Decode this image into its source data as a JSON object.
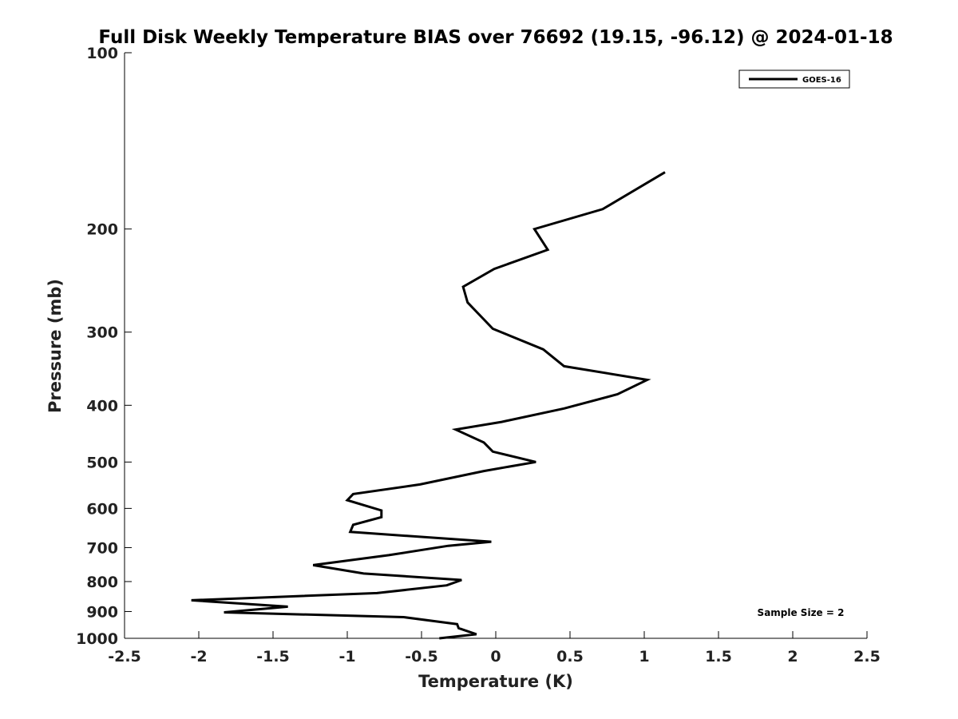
{
  "chart_data": {
    "type": "line",
    "title": "Full Disk Weekly Temperature BIAS over 76692 (19.15, -96.12) @ 2024-01-18",
    "xlabel": "Temperature (K)",
    "ylabel": "Pressure (mb)",
    "xlim": [
      -2.5,
      2.5
    ],
    "ylim": [
      1000,
      100
    ],
    "yscale": "log",
    "xticks": [
      "-2.5",
      "-2",
      "-1.5",
      "-1",
      "-0.5",
      "0",
      "0.5",
      "1",
      "1.5",
      "2",
      "2.5"
    ],
    "yticks": [
      "100",
      "200",
      "300",
      "400",
      "500",
      "600",
      "700",
      "800",
      "900",
      "1000"
    ],
    "grid": false,
    "legend_position": "top-right",
    "series": [
      {
        "name": "GOES-16",
        "color": "#000000",
        "points": [
          [
            1.14,
            160
          ],
          [
            0.72,
            185
          ],
          [
            0.26,
            200
          ],
          [
            0.35,
            217
          ],
          [
            -0.01,
            234
          ],
          [
            -0.22,
            251
          ],
          [
            -0.19,
            267
          ],
          [
            -0.02,
            296
          ],
          [
            0.32,
            321
          ],
          [
            0.46,
            343
          ],
          [
            1.02,
            362
          ],
          [
            0.82,
            383
          ],
          [
            0.46,
            405
          ],
          [
            0.04,
            427
          ],
          [
            -0.27,
            440
          ],
          [
            -0.08,
            463
          ],
          [
            -0.02,
            480
          ],
          [
            0.27,
            500
          ],
          [
            -0.08,
            518
          ],
          [
            -0.51,
            546
          ],
          [
            -0.96,
            567
          ],
          [
            -1.0,
            581
          ],
          [
            -0.77,
            605
          ],
          [
            -0.77,
            621
          ],
          [
            -0.96,
            640
          ],
          [
            -0.98,
            658
          ],
          [
            -0.03,
            684
          ],
          [
            -0.32,
            695
          ],
          [
            -0.72,
            721
          ],
          [
            -1.23,
            750
          ],
          [
            -0.89,
            775
          ],
          [
            -0.23,
            795
          ],
          [
            -0.33,
            812
          ],
          [
            -0.8,
            837
          ],
          [
            -2.05,
            861
          ],
          [
            -1.4,
            883
          ],
          [
            -1.83,
            903
          ],
          [
            -0.62,
            920
          ],
          [
            -0.26,
            946
          ],
          [
            -0.25,
            961
          ],
          [
            -0.13,
            984
          ],
          [
            -0.38,
            1000
          ]
        ]
      }
    ],
    "annotations": [
      "Sample Size = 2"
    ]
  }
}
